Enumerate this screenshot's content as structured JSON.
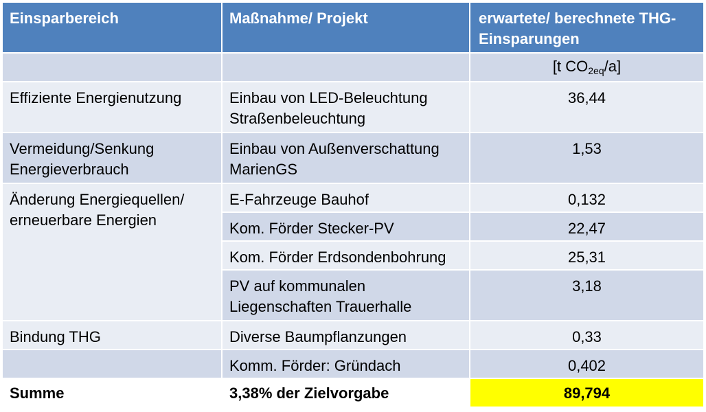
{
  "table": {
    "header": {
      "col1": "Einsparbereich",
      "col2": "Maßnahme/ Projekt",
      "col3": "erwartete/ berechnete THG-Einsparungen"
    },
    "unit": {
      "prefix": "[t CO",
      "sub": "2eq",
      "suffix": "/a]"
    },
    "rows": [
      {
        "category": "Effiziente Energienutzung",
        "measure": "Einbau von LED-Beleuchtung Straßenbeleuchtung",
        "value": "36,44"
      },
      {
        "category": "Vermeidung/Senkung Energieverbrauch",
        "measure": "Einbau von Außenverschattung MarienGS",
        "value": "1,53"
      },
      {
        "category": "Änderung Energiequellen/ erneuerbare Energien",
        "measure": "E-Fahrzeuge Bauhof",
        "value": "0,132"
      },
      {
        "category": "",
        "measure": "Kom. Förder Stecker-PV",
        "value": "22,47"
      },
      {
        "category": "",
        "measure": "Kom. Förder Erdsondenbohrung",
        "value": "25,31"
      },
      {
        "category": "",
        "measure": "PV auf kommunalen Liegenschaften Trauerhalle",
        "value": "3,18"
      },
      {
        "category": "Bindung THG",
        "measure": "Diverse Baumpflanzungen",
        "value": "0,33"
      },
      {
        "category": "",
        "measure": "Komm. Förder: Gründach",
        "value": "0,402"
      }
    ],
    "summary": {
      "label": "Summe",
      "measure": "3,38% der Zielvorgabe",
      "value": "89,794"
    }
  },
  "colors": {
    "header_bg": "#4f81bd",
    "row_dark": "#d0d8e8",
    "row_light": "#e9edf4",
    "total_highlight": "#ffff00"
  }
}
